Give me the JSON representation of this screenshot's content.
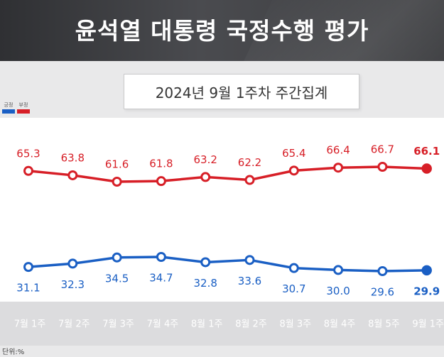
{
  "header": {
    "title": "윤석열 대통령 국정수행 평가"
  },
  "subtitle": "2024년 9월 1주차 주간집계",
  "legend": [
    {
      "label": "긍정",
      "color": "#1a5fc4"
    },
    {
      "label": "부정",
      "color": "#d71f27"
    }
  ],
  "unit_label": "단위:%",
  "chart_data": {
    "type": "line",
    "title": "윤석열 대통령 국정수행 평가",
    "subtitle": "2024년 9월 1주차 주간집계",
    "categories": [
      "7월 1주",
      "7월 2주",
      "7월 3주",
      "7월 4주",
      "8월 1주",
      "8월 2주",
      "8월 3주",
      "8월 4주",
      "8월 5주",
      "9월 1주"
    ],
    "series": [
      {
        "name": "부정",
        "color": "#d71f27",
        "values": [
          65.3,
          63.8,
          61.6,
          61.8,
          63.2,
          62.2,
          65.4,
          66.4,
          66.7,
          66.1
        ],
        "labels": [
          "65.3",
          "63.8",
          "61.6",
          "61.8",
          "63.2",
          "62.2",
          "65.4",
          "66.4",
          "66.7",
          "66.1"
        ]
      },
      {
        "name": "긍정",
        "color": "#1a5fc4",
        "values": [
          31.1,
          32.3,
          34.5,
          34.7,
          32.8,
          33.6,
          30.7,
          30.0,
          29.6,
          29.9
        ],
        "labels": [
          "31.1",
          "32.3",
          "34.5",
          "34.7",
          "32.8",
          "33.6",
          "30.7",
          "30.0",
          "29.6",
          "29.9"
        ]
      }
    ],
    "ylabel": "",
    "xlabel": "",
    "unit": "단위:%",
    "grid": false
  }
}
